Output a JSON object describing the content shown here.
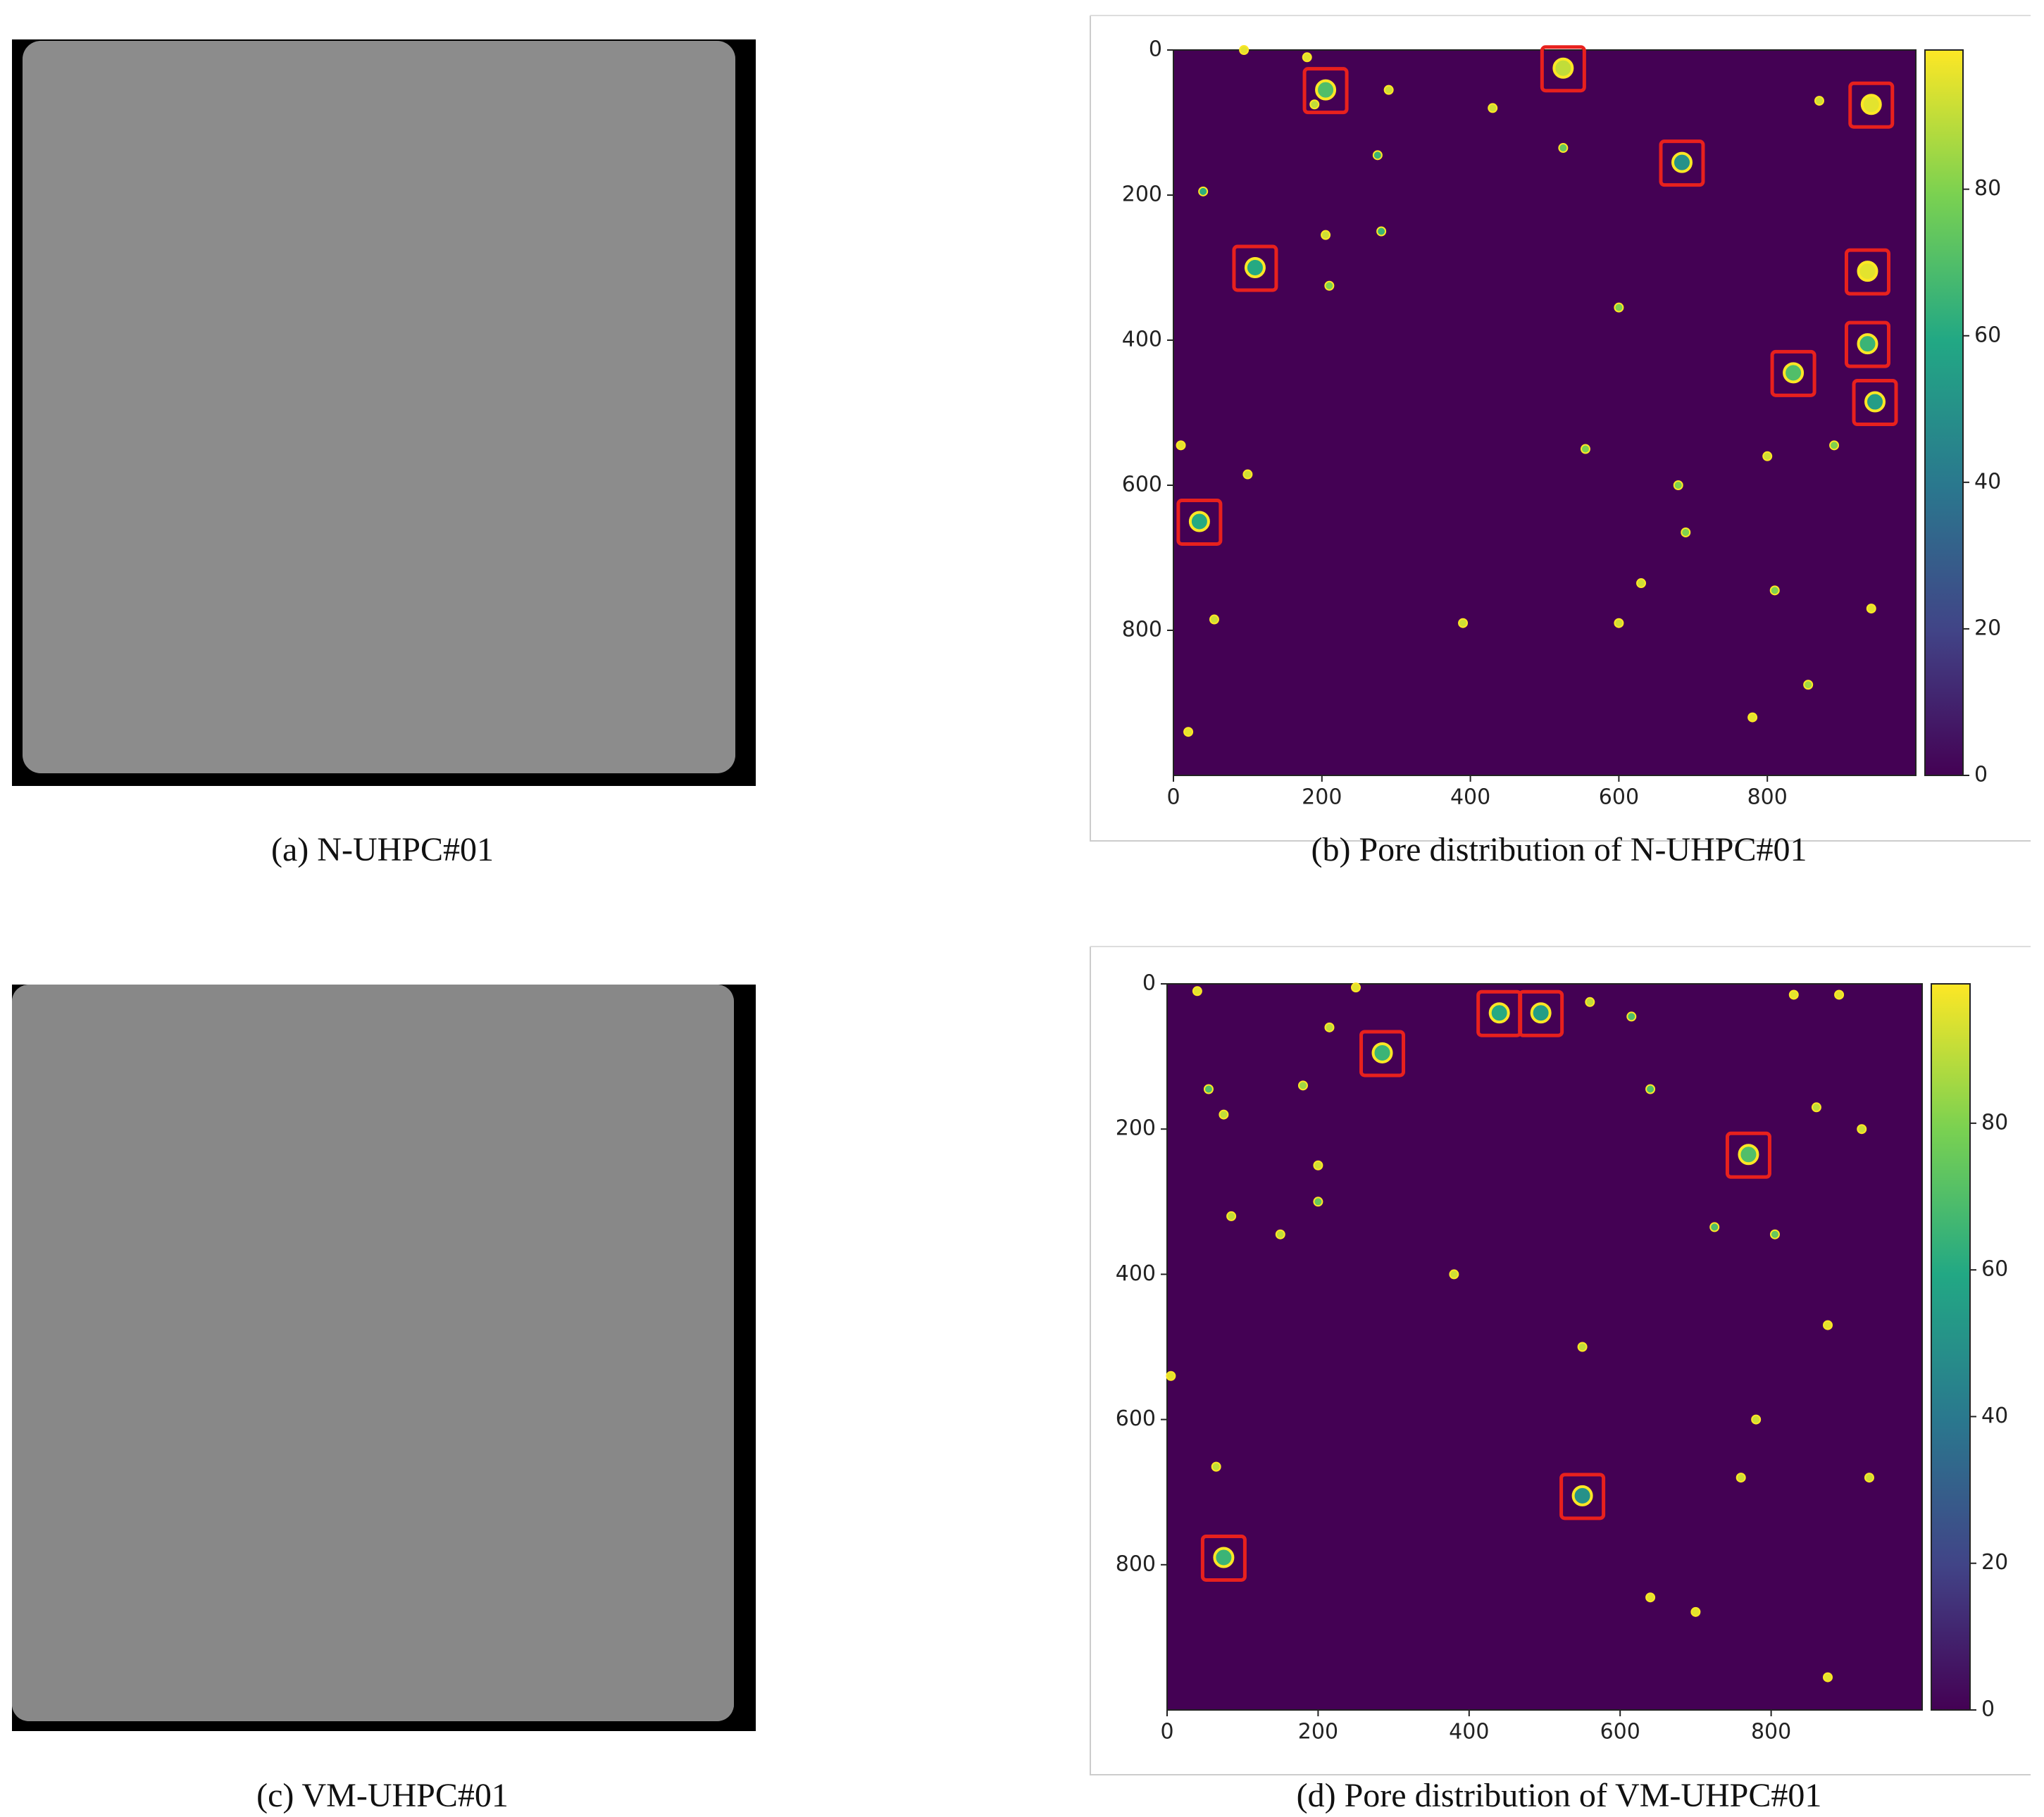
{
  "photos": [
    {
      "caption": "(a) N-UHPC#01"
    },
    {
      "caption": "(c) VM-UHPC#01"
    }
  ],
  "chart_data": [
    {
      "type": "pore_map",
      "caption": "(b) Pore distribution of N-UHPC#01",
      "xlim": [
        0,
        1000
      ],
      "ylim": [
        0,
        1000
      ],
      "y_inverted": true,
      "xticks": [
        0,
        200,
        400,
        600,
        800
      ],
      "yticks": [
        0,
        200,
        400,
        600,
        800
      ],
      "colormap": "viridis",
      "clim": [
        0,
        99
      ],
      "cticks": [
        0,
        20,
        40,
        60,
        80
      ],
      "box_color": "#e8211d",
      "pores": {
        "x": [
          10,
          180,
          290,
          430,
          275,
          280,
          40,
          205,
          210,
          600,
          525,
          870,
          555,
          890,
          800,
          680,
          690,
          810,
          940,
          630,
          390,
          600,
          55,
          855,
          20,
          780,
          100,
          95,
          190
        ],
        "y": [
          545,
          10,
          55,
          80,
          145,
          250,
          195,
          255,
          325,
          355,
          135,
          70,
          550,
          545,
          560,
          600,
          665,
          745,
          770,
          735,
          790,
          790,
          785,
          875,
          940,
          920,
          585,
          0,
          75
        ],
        "values": [
          95,
          95,
          92,
          92,
          65,
          65,
          62,
          92,
          80,
          80,
          75,
          92,
          80,
          80,
          92,
          80,
          80,
          80,
          95,
          92,
          92,
          92,
          92,
          85,
          95,
          95,
          92,
          95,
          90
        ]
      },
      "boxed": {
        "x": [
          205,
          525,
          940,
          685,
          110,
          935,
          935,
          835,
          945,
          35
        ],
        "y": [
          55,
          25,
          75,
          155,
          300,
          305,
          405,
          445,
          485,
          650
        ],
        "values": [
          70,
          90,
          95,
          50,
          60,
          95,
          65,
          70,
          55,
          60
        ]
      }
    },
    {
      "type": "pore_map",
      "caption": "(d) Pore distribution of VM-UHPC#01",
      "xlim": [
        0,
        1000
      ],
      "ylim": [
        0,
        1000
      ],
      "y_inverted": true,
      "xticks": [
        0,
        200,
        400,
        600,
        800
      ],
      "yticks": [
        0,
        200,
        400,
        600,
        800
      ],
      "colormap": "viridis",
      "clim": [
        0,
        99
      ],
      "cticks": [
        0,
        20,
        40,
        60,
        80
      ],
      "box_color": "#e8211d",
      "pores": {
        "x": [
          560,
          615,
          215,
          55,
          180,
          75,
          640,
          920,
          860,
          5,
          200,
          150,
          85,
          725,
          805,
          380,
          550,
          65,
          760,
          930,
          780,
          200,
          890,
          830,
          875,
          875,
          640,
          700,
          40,
          250
        ],
        "y": [
          25,
          45,
          60,
          145,
          140,
          180,
          145,
          200,
          170,
          540,
          300,
          345,
          320,
          335,
          345,
          400,
          500,
          665,
          680,
          680,
          600,
          250,
          15,
          15,
          470,
          955,
          845,
          865,
          10,
          5
        ],
        "values": [
          90,
          70,
          90,
          70,
          85,
          90,
          70,
          92,
          90,
          95,
          75,
          90,
          90,
          70,
          75,
          92,
          90,
          90,
          92,
          92,
          92,
          92,
          95,
          95,
          95,
          95,
          95,
          95,
          95,
          95
        ]
      },
      "boxed": {
        "x": [
          440,
          495,
          285,
          770,
          550,
          75
        ],
        "y": [
          40,
          40,
          95,
          235,
          705,
          790
        ],
        "values": [
          60,
          55,
          65,
          70,
          50,
          65
        ]
      }
    }
  ]
}
